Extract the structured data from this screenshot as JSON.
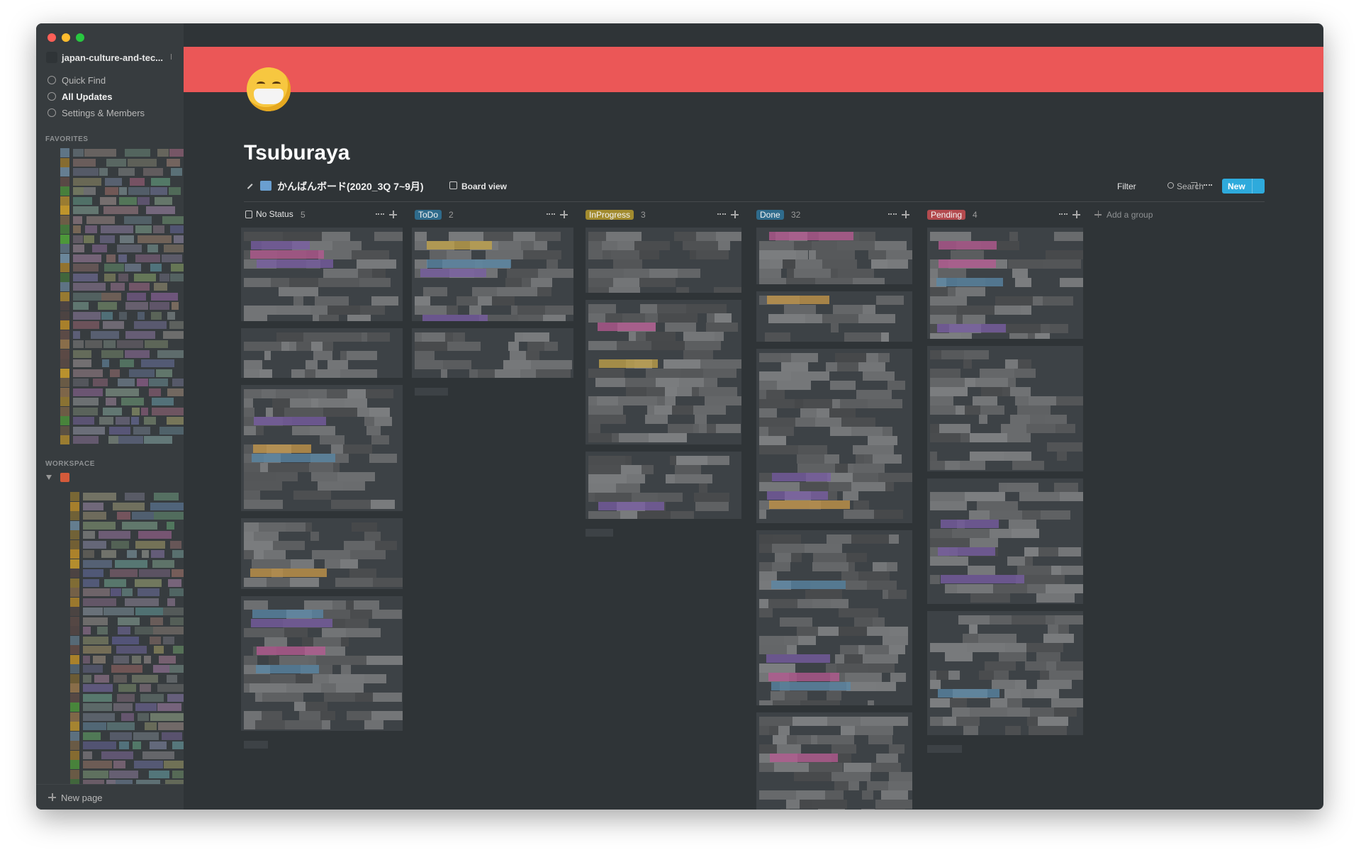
{
  "sidebar": {
    "workspace": "japan-culture-and-tec...",
    "menu": [
      "Quick Find",
      "All Updates",
      "Settings & Members"
    ],
    "favorites_label": "FAVORITES",
    "workspace_label": "WORKSPACE",
    "new_page": "New page"
  },
  "page": {
    "title": "Tsuburaya"
  },
  "database": {
    "title": "かんばんボード(2020_3Q 7~9月)",
    "view": "Board view",
    "actions": [
      "Filter",
      "Search"
    ],
    "new_button": "New",
    "add_group": "Add a group",
    "groups": [
      {
        "name": "No Status",
        "count": 5
      },
      {
        "name": "ToDo",
        "count": 2
      },
      {
        "name": "InProgress",
        "count": 3
      },
      {
        "name": "Done",
        "count": 32
      },
      {
        "name": "Pending",
        "count": 4
      }
    ]
  }
}
